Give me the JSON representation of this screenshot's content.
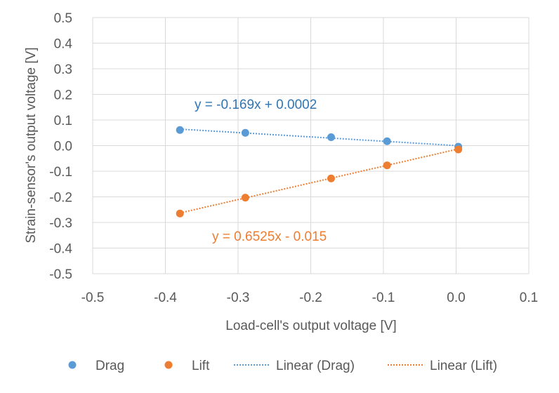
{
  "chart_data": {
    "type": "scatter",
    "xlabel": "Load-cell's output voltage [V]",
    "ylabel": "Strain-sensor's output voltage [V]",
    "xlim": [
      -0.5,
      0.1
    ],
    "ylim": [
      -0.5,
      0.5
    ],
    "x_ticks": [
      -0.5,
      -0.4,
      -0.3,
      -0.2,
      -0.1,
      0.0,
      0.1
    ],
    "x_tick_labels": [
      "-0.5",
      "-0.4",
      "-0.3",
      "-0.2",
      "-0.1",
      "0.0",
      "0.1"
    ],
    "y_ticks": [
      0.5,
      0.4,
      0.3,
      0.2,
      0.1,
      0.0,
      -0.1,
      -0.2,
      -0.3,
      -0.4,
      -0.5
    ],
    "y_tick_labels": [
      "0.5",
      "0.4",
      "0.3",
      "0.2",
      "0.1",
      "0.0",
      "-0.1",
      "-0.2",
      "-0.3",
      "-0.4",
      "-0.5"
    ],
    "grid": true,
    "legend_position": "bottom",
    "series": [
      {
        "name": "Drag",
        "color": "#5B9BD5",
        "points": [
          [
            -0.38,
            0.061
          ],
          [
            -0.29,
            0.05
          ],
          [
            -0.172,
            0.033
          ],
          [
            -0.095,
            0.017
          ],
          [
            0.003,
            -0.004
          ]
        ],
        "trendline": {
          "name": "Linear (Drag)",
          "slope": -0.169,
          "intercept": 0.0002,
          "equation": "y = -0.169x + 0.0002"
        }
      },
      {
        "name": "Lift",
        "color": "#ED7D31",
        "points": [
          [
            -0.38,
            -0.265
          ],
          [
            -0.29,
            -0.203
          ],
          [
            -0.172,
            -0.128
          ],
          [
            -0.095,
            -0.077
          ],
          [
            0.003,
            -0.015
          ]
        ],
        "trendline": {
          "name": "Linear (Lift)",
          "slope": 0.6525,
          "intercept": -0.015,
          "equation": "y = 0.6525x - 0.015"
        }
      }
    ]
  }
}
